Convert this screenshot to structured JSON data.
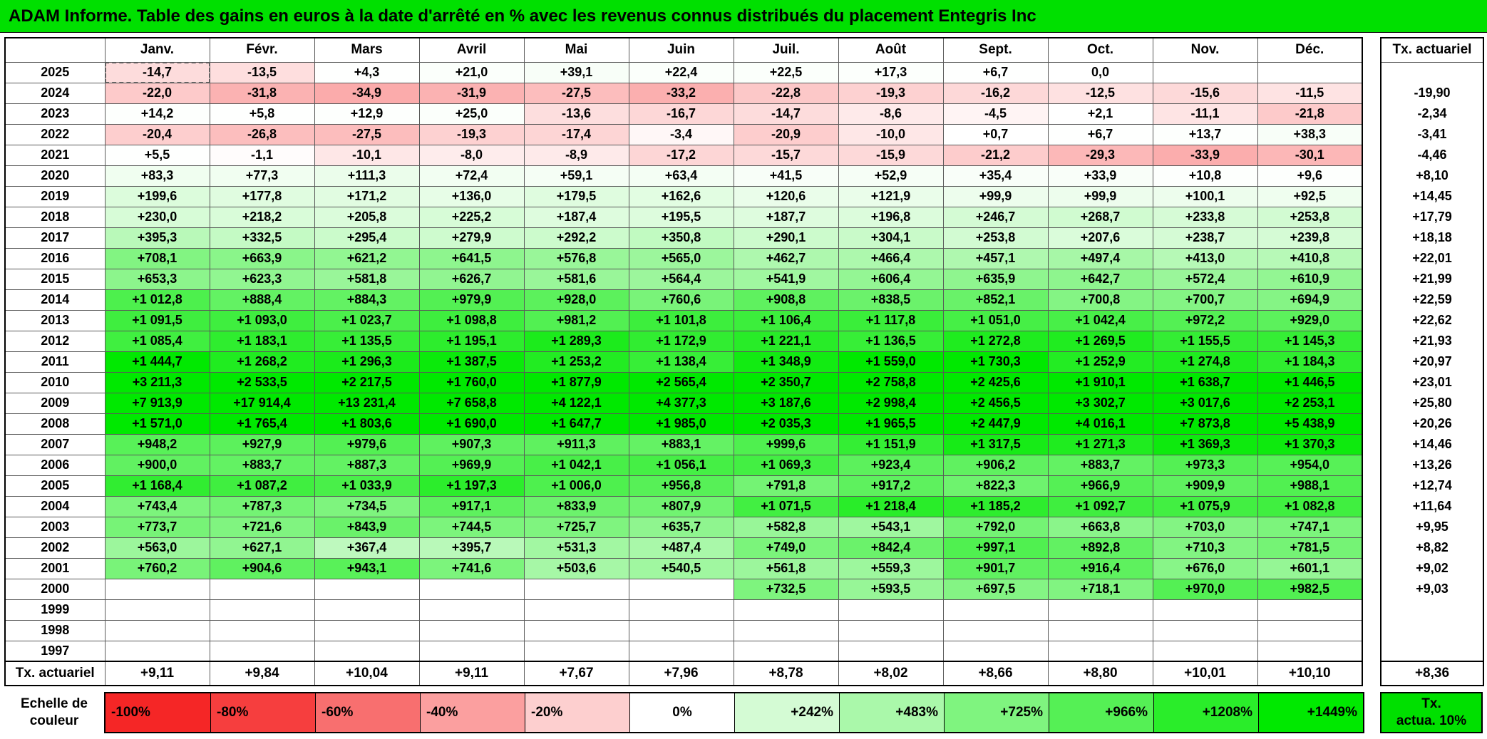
{
  "colors": {
    "accent_green": "#00e000",
    "grid_line": "#595959",
    "border_black": "#000000"
  },
  "chart_data": {
    "type": "heatmap",
    "title": "ADAM Informe. Table des gains en euros à la date d'arrêté en % avec les revenus connus distribués du placement Entegris Inc",
    "columns": [
      "Janv.",
      "Févr.",
      "Mars",
      "Avril",
      "Mai",
      "Juin",
      "Juil.",
      "Août",
      "Sept.",
      "Oct.",
      "Nov.",
      "Déc."
    ],
    "tx_column_header": "Tx. actuariel",
    "rows": [
      {
        "year": "2025",
        "cells": [
          "-14,7",
          "-13,5",
          "+4,3",
          "+21,0",
          "+39,1",
          "+22,4",
          "+22,5",
          "+17,3",
          "+6,7",
          "0,0",
          "",
          ""
        ],
        "tx": ""
      },
      {
        "year": "2024",
        "cells": [
          "-22,0",
          "-31,8",
          "-34,9",
          "-31,9",
          "-27,5",
          "-33,2",
          "-22,8",
          "-19,3",
          "-16,2",
          "-12,5",
          "-15,6",
          "-11,5"
        ],
        "tx": "-19,90"
      },
      {
        "year": "2023",
        "cells": [
          "+14,2",
          "+5,8",
          "+12,9",
          "+25,0",
          "-13,6",
          "-16,7",
          "-14,7",
          "-8,6",
          "-4,5",
          "+2,1",
          "-11,1",
          "-21,8"
        ],
        "tx": "-2,34"
      },
      {
        "year": "2022",
        "cells": [
          "-20,4",
          "-26,8",
          "-27,5",
          "-19,3",
          "-17,4",
          "-3,4",
          "-20,9",
          "-10,0",
          "+0,7",
          "+6,7",
          "+13,7",
          "+38,3"
        ],
        "tx": "-3,41"
      },
      {
        "year": "2021",
        "cells": [
          "+5,5",
          "-1,1",
          "-10,1",
          "-8,0",
          "-8,9",
          "-17,2",
          "-15,7",
          "-15,9",
          "-21,2",
          "-29,3",
          "-33,9",
          "-30,1"
        ],
        "tx": "-4,46"
      },
      {
        "year": "2020",
        "cells": [
          "+83,3",
          "+77,3",
          "+111,3",
          "+72,4",
          "+59,1",
          "+63,4",
          "+41,5",
          "+52,9",
          "+35,4",
          "+33,9",
          "+10,8",
          "+9,6"
        ],
        "tx": "+8,10"
      },
      {
        "year": "2019",
        "cells": [
          "+199,6",
          "+177,8",
          "+171,2",
          "+136,0",
          "+179,5",
          "+162,6",
          "+120,6",
          "+121,9",
          "+99,9",
          "+99,9",
          "+100,1",
          "+92,5"
        ],
        "tx": "+14,45"
      },
      {
        "year": "2018",
        "cells": [
          "+230,0",
          "+218,2",
          "+205,8",
          "+225,2",
          "+187,4",
          "+195,5",
          "+187,7",
          "+196,8",
          "+246,7",
          "+268,7",
          "+233,8",
          "+253,8"
        ],
        "tx": "+17,79"
      },
      {
        "year": "2017",
        "cells": [
          "+395,3",
          "+332,5",
          "+295,4",
          "+279,9",
          "+292,2",
          "+350,8",
          "+290,1",
          "+304,1",
          "+253,8",
          "+207,6",
          "+238,7",
          "+239,8"
        ],
        "tx": "+18,18"
      },
      {
        "year": "2016",
        "cells": [
          "+708,1",
          "+663,9",
          "+621,2",
          "+641,5",
          "+576,8",
          "+565,0",
          "+462,7",
          "+466,4",
          "+457,1",
          "+497,4",
          "+413,0",
          "+410,8"
        ],
        "tx": "+22,01"
      },
      {
        "year": "2015",
        "cells": [
          "+653,3",
          "+623,3",
          "+581,8",
          "+626,7",
          "+581,6",
          "+564,4",
          "+541,9",
          "+606,4",
          "+635,9",
          "+642,7",
          "+572,4",
          "+610,9"
        ],
        "tx": "+21,99"
      },
      {
        "year": "2014",
        "cells": [
          "+1 012,8",
          "+888,4",
          "+884,3",
          "+979,9",
          "+928,0",
          "+760,6",
          "+908,8",
          "+838,5",
          "+852,1",
          "+700,8",
          "+700,7",
          "+694,9"
        ],
        "tx": "+22,59"
      },
      {
        "year": "2013",
        "cells": [
          "+1 091,5",
          "+1 093,0",
          "+1 023,7",
          "+1 098,8",
          "+981,2",
          "+1 101,8",
          "+1 106,4",
          "+1 117,8",
          "+1 051,0",
          "+1 042,4",
          "+972,2",
          "+929,0"
        ],
        "tx": "+22,62"
      },
      {
        "year": "2012",
        "cells": [
          "+1 085,4",
          "+1 183,1",
          "+1 135,5",
          "+1 195,1",
          "+1 289,3",
          "+1 172,9",
          "+1 221,1",
          "+1 136,5",
          "+1 272,8",
          "+1 269,5",
          "+1 155,5",
          "+1 145,3"
        ],
        "tx": "+21,93"
      },
      {
        "year": "2011",
        "cells": [
          "+1 444,7",
          "+1 268,2",
          "+1 296,3",
          "+1 387,5",
          "+1 253,2",
          "+1 138,4",
          "+1 348,9",
          "+1 559,0",
          "+1 730,3",
          "+1 252,9",
          "+1 274,8",
          "+1 184,3"
        ],
        "tx": "+20,97"
      },
      {
        "year": "2010",
        "cells": [
          "+3 211,3",
          "+2 533,5",
          "+2 217,5",
          "+1 760,0",
          "+1 877,9",
          "+2 565,4",
          "+2 350,7",
          "+2 758,8",
          "+2 425,6",
          "+1 910,1",
          "+1 638,7",
          "+1 446,5"
        ],
        "tx": "+23,01"
      },
      {
        "year": "2009",
        "cells": [
          "+7 913,9",
          "+17 914,4",
          "+13 231,4",
          "+7 658,8",
          "+4 122,1",
          "+4 377,3",
          "+3 187,6",
          "+2 998,4",
          "+2 456,5",
          "+3 302,7",
          "+3 017,6",
          "+2 253,1"
        ],
        "tx": "+25,80"
      },
      {
        "year": "2008",
        "cells": [
          "+1 571,0",
          "+1 765,4",
          "+1 803,6",
          "+1 690,0",
          "+1 647,7",
          "+1 985,0",
          "+2 035,3",
          "+1 965,5",
          "+2 447,9",
          "+4 016,1",
          "+7 873,8",
          "+5 438,9"
        ],
        "tx": "+20,26"
      },
      {
        "year": "2007",
        "cells": [
          "+948,2",
          "+927,9",
          "+979,6",
          "+907,3",
          "+911,3",
          "+883,1",
          "+999,6",
          "+1 151,9",
          "+1 317,5",
          "+1 271,3",
          "+1 369,3",
          "+1 370,3"
        ],
        "tx": "+14,46"
      },
      {
        "year": "2006",
        "cells": [
          "+900,0",
          "+883,7",
          "+887,3",
          "+969,9",
          "+1 042,1",
          "+1 056,1",
          "+1 069,3",
          "+923,4",
          "+906,2",
          "+883,7",
          "+973,3",
          "+954,0"
        ],
        "tx": "+13,26"
      },
      {
        "year": "2005",
        "cells": [
          "+1 168,4",
          "+1 087,2",
          "+1 033,9",
          "+1 197,3",
          "+1 006,0",
          "+956,8",
          "+791,8",
          "+917,2",
          "+822,3",
          "+966,9",
          "+909,9",
          "+988,1"
        ],
        "tx": "+12,74"
      },
      {
        "year": "2004",
        "cells": [
          "+743,4",
          "+787,3",
          "+734,5",
          "+917,1",
          "+833,9",
          "+807,9",
          "+1 071,5",
          "+1 218,4",
          "+1 185,2",
          "+1 092,7",
          "+1 075,9",
          "+1 082,8"
        ],
        "tx": "+11,64"
      },
      {
        "year": "2003",
        "cells": [
          "+773,7",
          "+721,6",
          "+843,9",
          "+744,5",
          "+725,7",
          "+635,7",
          "+582,8",
          "+543,1",
          "+792,0",
          "+663,8",
          "+703,0",
          "+747,1"
        ],
        "tx": "+9,95"
      },
      {
        "year": "2002",
        "cells": [
          "+563,0",
          "+627,1",
          "+367,4",
          "+395,7",
          "+531,3",
          "+487,4",
          "+749,0",
          "+842,4",
          "+997,1",
          "+892,8",
          "+710,3",
          "+781,5"
        ],
        "tx": "+8,82"
      },
      {
        "year": "2001",
        "cells": [
          "+760,2",
          "+904,6",
          "+943,1",
          "+741,6",
          "+503,6",
          "+540,5",
          "+561,8",
          "+559,3",
          "+901,7",
          "+916,4",
          "+676,0",
          "+601,1"
        ],
        "tx": "+9,02"
      },
      {
        "year": "2000",
        "cells": [
          "",
          "",
          "",
          "",
          "",
          "",
          "+732,5",
          "+593,5",
          "+697,5",
          "+718,1",
          "+970,0",
          "+982,5"
        ],
        "tx": "+9,03"
      },
      {
        "year": "1999",
        "cells": [
          "",
          "",
          "",
          "",
          "",
          "",
          "",
          "",
          "",
          "",
          "",
          ""
        ],
        "tx": ""
      },
      {
        "year": "1998",
        "cells": [
          "",
          "",
          "",
          "",
          "",
          "",
          "",
          "",
          "",
          "",
          "",
          ""
        ],
        "tx": ""
      },
      {
        "year": "1997",
        "cells": [
          "",
          "",
          "",
          "",
          "",
          "",
          "",
          "",
          "",
          "",
          "",
          ""
        ],
        "tx": ""
      }
    ],
    "footer": {
      "label": "Tx. actuariel",
      "cells": [
        "+9,11",
        "+9,84",
        "+10,04",
        "+9,11",
        "+7,67",
        "+7,96",
        "+8,78",
        "+8,02",
        "+8,66",
        "+8,80",
        "+10,01",
        "+10,10"
      ],
      "tx": "+8,36"
    },
    "selected": {
      "year": "2025",
      "col": 0
    },
    "legend": {
      "label": "Echelle de\ncouleur",
      "stops": [
        "-100%",
        "-80%",
        "-60%",
        "-40%",
        "-20%",
        "0%",
        "+242%",
        "+483%",
        "+725%",
        "+966%",
        "+1208%",
        "+1449%"
      ],
      "tx_label": "Tx.\nactua. 10%"
    }
  }
}
